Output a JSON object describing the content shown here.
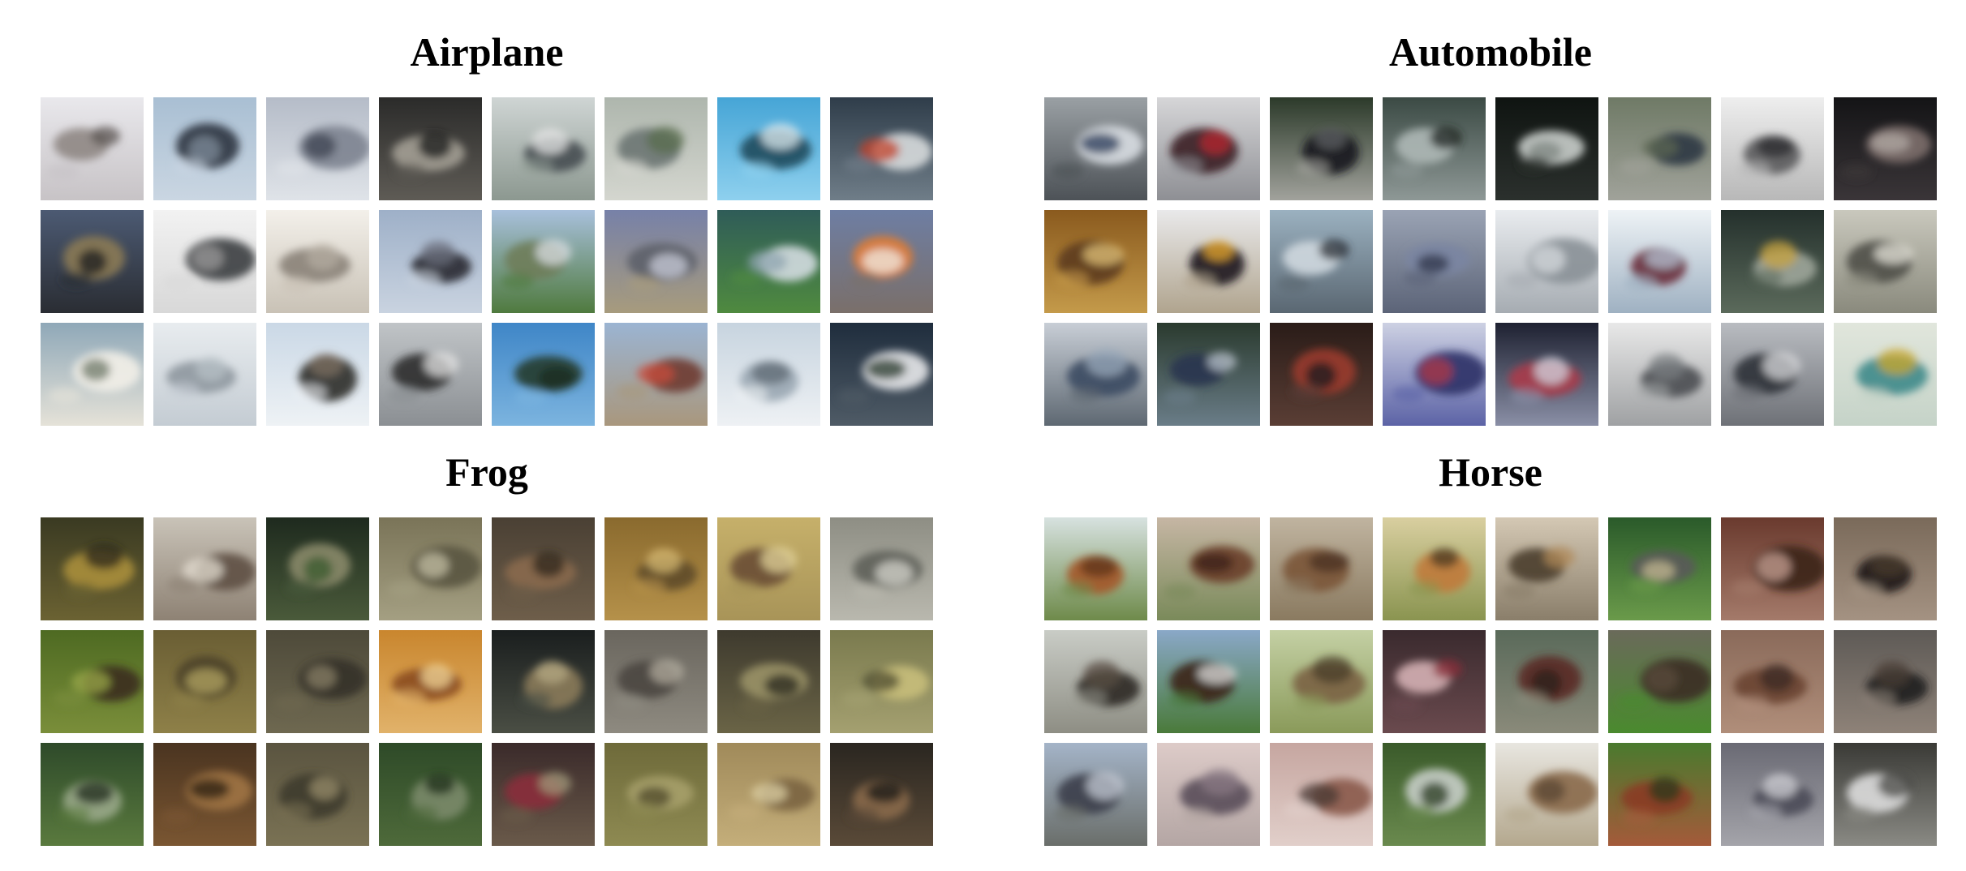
{
  "panels": [
    {
      "title": "Airplane",
      "tiles": [
        {
          "name": "airplane-sample",
          "bg": [
            "#e9e8ec",
            "#c7c3c6"
          ],
          "blob": "#8f8784",
          "accent": "#5b5452"
        },
        {
          "name": "airplane-sample",
          "bg": [
            "#a9bfd3",
            "#cad6e2"
          ],
          "blob": "#2f3540",
          "accent": "#7c8a98"
        },
        {
          "name": "airplane-sample",
          "bg": [
            "#b5bcc8",
            "#dfe3e8"
          ],
          "blob": "#7d8390",
          "accent": "#3f4450"
        },
        {
          "name": "airplane-sample",
          "bg": [
            "#2b2b2a",
            "#5e5b55"
          ],
          "blob": "#a39e94",
          "accent": "#191918"
        },
        {
          "name": "airplane-sample",
          "bg": [
            "#cfd5d4",
            "#8c9890"
          ],
          "blob": "#454d52",
          "accent": "#e6e6e6"
        },
        {
          "name": "airplane-sample",
          "bg": [
            "#aeb6ad",
            "#d4d6cf"
          ],
          "blob": "#6c7672",
          "accent": "#5a6d4d"
        },
        {
          "name": "airplane-sample",
          "bg": [
            "#46a5d6",
            "#8ed0ee"
          ],
          "blob": "#1e4a5c",
          "accent": "#dde8ec"
        },
        {
          "name": "airplane-sample",
          "bg": [
            "#2f3d4a",
            "#6f7d88"
          ],
          "blob": "#d7dadc",
          "accent": "#c2412a"
        },
        {
          "name": "airplane-sample",
          "bg": [
            "#4c5a73",
            "#2a2d33"
          ],
          "blob": "#8b7a55",
          "accent": "#1c1d20"
        },
        {
          "name": "airplane-sample",
          "bg": [
            "#f2f2f2",
            "#d8d8d8"
          ],
          "blob": "#3b3d40",
          "accent": "#9a9a9a"
        },
        {
          "name": "airplane-sample",
          "bg": [
            "#f3f0ea",
            "#c9c2b6"
          ],
          "blob": "#8a8278",
          "accent": "#b4aca0"
        },
        {
          "name": "airplane-sample",
          "bg": [
            "#9eb0c8",
            "#c9d3e0"
          ],
          "blob": "#2a2a30",
          "accent": "#6b6f7c"
        },
        {
          "name": "airplane-sample",
          "bg": [
            "#a8c0dc",
            "#4f7a3e"
          ],
          "blob": "#6f7d5a",
          "accent": "#d9dde3"
        },
        {
          "name": "airplane-sample",
          "bg": [
            "#7781a8",
            "#a79b7d"
          ],
          "blob": "#5d5f69",
          "accent": "#c8ccd8"
        },
        {
          "name": "airplane-sample",
          "bg": [
            "#2f5c58",
            "#4f8a3f"
          ],
          "blob": "#d3dbe0",
          "accent": "#8fa4b0"
        },
        {
          "name": "airplane-sample",
          "bg": [
            "#6e7ea3",
            "#7a6f6a"
          ],
          "blob": "#e07d35",
          "accent": "#f1ece6"
        },
        {
          "name": "airplane-sample",
          "bg": [
            "#8fa8b8",
            "#e5e2d8"
          ],
          "blob": "#f2efe8",
          "accent": "#6e7a68"
        },
        {
          "name": "airplane-sample",
          "bg": [
            "#e8ecef",
            "#c4ccd3"
          ],
          "blob": "#8e979e",
          "accent": "#b7c0c6"
        },
        {
          "name": "airplane-sample",
          "bg": [
            "#cad8e6",
            "#eef2f5"
          ],
          "blob": "#2f2c2a",
          "accent": "#7d6f62"
        },
        {
          "name": "airplane-sample",
          "bg": [
            "#c0c4c7",
            "#8b8f93"
          ],
          "blob": "#2c2c2e",
          "accent": "#e4e4e4"
        },
        {
          "name": "airplane-sample",
          "bg": [
            "#3f86c7",
            "#7cb4df"
          ],
          "blob": "#243a2e",
          "accent": "#1a2a22"
        },
        {
          "name": "airplane-sample",
          "bg": [
            "#9bb4d2",
            "#a9977d"
          ],
          "blob": "#6e3a30",
          "accent": "#c84c3c"
        },
        {
          "name": "airplane-sample",
          "bg": [
            "#c7d4df",
            "#eef1f4"
          ],
          "blob": "#9aa7b2",
          "accent": "#5d6873"
        },
        {
          "name": "airplane-sample",
          "bg": [
            "#1f2d3d",
            "#4f5b66"
          ],
          "blob": "#e7e8ea",
          "accent": "#2a3a2e"
        }
      ]
    },
    {
      "title": "Automobile",
      "tiles": [
        {
          "name": "automobile-sample",
          "bg": [
            "#9aa0a4",
            "#4d5257"
          ],
          "blob": "#d8dde2",
          "accent": "#2a3a5a"
        },
        {
          "name": "automobile-sample",
          "bg": [
            "#d6d6d8",
            "#8e8f94"
          ],
          "blob": "#3a1e26",
          "accent": "#b8262e"
        },
        {
          "name": "automobile-sample",
          "bg": [
            "#2c3a2a",
            "#a1a29c"
          ],
          "blob": "#1a1a1c",
          "accent": "#5d5f63"
        },
        {
          "name": "automobile-sample",
          "bg": [
            "#3b4a44",
            "#8e9896"
          ],
          "blob": "#aeb8b6",
          "accent": "#1f2624"
        },
        {
          "name": "automobile-sample",
          "bg": [
            "#0f1411",
            "#2b302d"
          ],
          "blob": "#c9cecb",
          "accent": "#7f8682"
        },
        {
          "name": "automobile-sample",
          "bg": [
            "#6f7a66",
            "#a0a29a"
          ],
          "blob": "#2f3642",
          "accent": "#5c6652"
        },
        {
          "name": "automobile-sample",
          "bg": [
            "#eeeeee",
            "#b8b8b8"
          ],
          "blob": "#5b5b5d",
          "accent": "#2b2b2d"
        },
        {
          "name": "automobile-sample",
          "bg": [
            "#141416",
            "#3a3538"
          ],
          "blob": "#7d6f6c",
          "accent": "#b2a9a4"
        },
        {
          "name": "automobile-sample",
          "bg": [
            "#8a5a1e",
            "#c49a4a"
          ],
          "blob": "#5d3a1c",
          "accent": "#e0c27a"
        },
        {
          "name": "automobile-sample",
          "bg": [
            "#e9e9ea",
            "#b0a48e"
          ],
          "blob": "#1c1b1e",
          "accent": "#e9a72a"
        },
        {
          "name": "automobile-sample",
          "bg": [
            "#9bb1c0",
            "#5a6772"
          ],
          "blob": "#cfd8df",
          "accent": "#2d3338"
        },
        {
          "name": "automobile-sample",
          "bg": [
            "#9aa3b4",
            "#5c6478"
          ],
          "blob": "#7a85a2",
          "accent": "#30354a"
        },
        {
          "name": "automobile-sample",
          "bg": [
            "#e9ecef",
            "#a6acb2"
          ],
          "blob": "#8a9197",
          "accent": "#d6dade"
        },
        {
          "name": "automobile-sample",
          "bg": [
            "#eef3f6",
            "#9fb1c2"
          ],
          "blob": "#6a2b3a",
          "accent": "#b3c3d2"
        },
        {
          "name": "automobile-sample",
          "bg": [
            "#24302c",
            "#5b6a5b"
          ],
          "blob": "#9da59a",
          "accent": "#c7a33e"
        },
        {
          "name": "automobile-sample",
          "bg": [
            "#c9c8bd",
            "#8a8a7d"
          ],
          "blob": "#4f4f48",
          "accent": "#e4e3da"
        },
        {
          "name": "automobile-sample",
          "bg": [
            "#c8ced6",
            "#5e6872"
          ],
          "blob": "#3b4a63",
          "accent": "#9aa9bb"
        },
        {
          "name": "automobile-sample",
          "bg": [
            "#2a3a2e",
            "#6a7d88"
          ],
          "blob": "#283550",
          "accent": "#b6bfc8"
        },
        {
          "name": "automobile-sample",
          "bg": [
            "#2a1c18",
            "#5a3e35"
          ],
          "blob": "#9a3a2c",
          "accent": "#1a1c20"
        },
        {
          "name": "automobile-sample",
          "bg": [
            "#cdd1e3",
            "#5c63a6"
          ],
          "blob": "#2f3266",
          "accent": "#b03848"
        },
        {
          "name": "automobile-sample",
          "bg": [
            "#1e2131",
            "#8a8fa6"
          ],
          "blob": "#a93a4a",
          "accent": "#d3d6e0"
        },
        {
          "name": "automobile-sample",
          "bg": [
            "#e8e8e8",
            "#9fa1a3"
          ],
          "blob": "#4b4e52",
          "accent": "#7a7d81"
        },
        {
          "name": "automobile-sample",
          "bg": [
            "#b9bcc1",
            "#6e7177"
          ],
          "blob": "#2c3038",
          "accent": "#d8dadc"
        },
        {
          "name": "automobile-sample",
          "bg": [
            "#e1e6dc",
            "#c5d3c8"
          ],
          "blob": "#3f8a8a",
          "accent": "#c9a72c"
        }
      ]
    },
    {
      "title": "Frog",
      "tiles": [
        {
          "name": "frog-sample",
          "bg": [
            "#3a3a22",
            "#6b6232"
          ],
          "blob": "#a88e3a",
          "accent": "#2a2718"
        },
        {
          "name": "frog-sample",
          "bg": [
            "#c9c3b8",
            "#8e8274"
          ],
          "blob": "#5e4f42",
          "accent": "#e4ddd2"
        },
        {
          "name": "frog-sample",
          "bg": [
            "#1e2a1e",
            "#4a5a3a"
          ],
          "blob": "#8a8a6a",
          "accent": "#3a5a2e"
        },
        {
          "name": "frog-sample",
          "bg": [
            "#7a7458",
            "#a49f82"
          ],
          "blob": "#5a5440",
          "accent": "#c4bfa4"
        },
        {
          "name": "frog-sample",
          "bg": [
            "#4a4034",
            "#6e5e4a"
          ],
          "blob": "#8a6a4c",
          "accent": "#2e261e"
        },
        {
          "name": "frog-sample",
          "bg": [
            "#8a6a2e",
            "#b5914a"
          ],
          "blob": "#5e4a2a",
          "accent": "#d6b872"
        },
        {
          "name": "frog-sample",
          "bg": [
            "#c6b06a",
            "#a89458"
          ],
          "blob": "#6a4e34",
          "accent": "#e1d39a"
        },
        {
          "name": "frog-sample",
          "bg": [
            "#8e8e84",
            "#b9b8ae"
          ],
          "blob": "#5e605a",
          "accent": "#d5d4cc"
        },
        {
          "name": "frog-sample",
          "bg": [
            "#4e6a22",
            "#7a8e3a"
          ],
          "blob": "#3a2e1e",
          "accent": "#9aa84a"
        },
        {
          "name": "frog-sample",
          "bg": [
            "#6a5e34",
            "#8e8048"
          ],
          "blob": "#4a4028",
          "accent": "#b2a462"
        },
        {
          "name": "frog-sample",
          "bg": [
            "#4e4a3a",
            "#6e6850"
          ],
          "blob": "#34302a",
          "accent": "#8a8266"
        },
        {
          "name": "frog-sample",
          "bg": [
            "#c9862e",
            "#e1b26a"
          ],
          "blob": "#8a4a1e",
          "accent": "#f2d69a"
        },
        {
          "name": "frog-sample",
          "bg": [
            "#1a1e1e",
            "#4a4e44"
          ],
          "blob": "#8a7a5a",
          "accent": "#b4a882"
        },
        {
          "name": "frog-sample",
          "bg": [
            "#6a665e",
            "#8e8a80"
          ],
          "blob": "#4a4640",
          "accent": "#b0ab9e"
        },
        {
          "name": "frog-sample",
          "bg": [
            "#3e3a2e",
            "#6a6446"
          ],
          "blob": "#9a9266",
          "accent": "#2a2820"
        },
        {
          "name": "frog-sample",
          "bg": [
            "#7a7a4e",
            "#a4a070"
          ],
          "blob": "#c8be7a",
          "accent": "#4e4c32"
        },
        {
          "name": "frog-sample",
          "bg": [
            "#2e4a2a",
            "#5a7a3e"
          ],
          "blob": "#9aa88a",
          "accent": "#1e2a1c"
        },
        {
          "name": "frog-sample",
          "bg": [
            "#4a3420",
            "#7a5632"
          ],
          "blob": "#a07444",
          "accent": "#2a1e14"
        },
        {
          "name": "frog-sample",
          "bg": [
            "#5a5440",
            "#7a7254"
          ],
          "blob": "#3e3a2c",
          "accent": "#968c6a"
        },
        {
          "name": "frog-sample",
          "bg": [
            "#2e4a28",
            "#4e6a3a"
          ],
          "blob": "#7a8a6a",
          "accent": "#1e2e1a"
        },
        {
          "name": "frog-sample",
          "bg": [
            "#3a2a2a",
            "#6a5a4a"
          ],
          "blob": "#8a2e3a",
          "accent": "#a0987a"
        },
        {
          "name": "frog-sample",
          "bg": [
            "#6e6a3a",
            "#8e8a52"
          ],
          "blob": "#a6a06a",
          "accent": "#4e4a2a"
        },
        {
          "name": "frog-sample",
          "bg": [
            "#a08a5a",
            "#c4ae7a"
          ],
          "blob": "#7a6440",
          "accent": "#ded0a4"
        },
        {
          "name": "frog-sample",
          "bg": [
            "#2a2620",
            "#5a4a38"
          ],
          "blob": "#8a6a4a",
          "accent": "#1a1814"
        }
      ]
    },
    {
      "title": "Horse",
      "tiles": [
        {
          "name": "horse-sample",
          "bg": [
            "#d7e2e0",
            "#6e8a4a"
          ],
          "blob": "#a4582a",
          "accent": "#5e3218"
        },
        {
          "name": "horse-sample",
          "bg": [
            "#c6b6a4",
            "#7a8a5a"
          ],
          "blob": "#6a3e2a",
          "accent": "#3a2218"
        },
        {
          "name": "horse-sample",
          "bg": [
            "#c0b4a0",
            "#8a7a60"
          ],
          "blob": "#7a5436",
          "accent": "#4a3222"
        },
        {
          "name": "horse-sample",
          "bg": [
            "#d9cfa0",
            "#8a9450"
          ],
          "blob": "#c07a3a",
          "accent": "#4a3a22"
        },
        {
          "name": "horse-sample",
          "bg": [
            "#d4c8b4",
            "#8a7e6a"
          ],
          "blob": "#4a3e2e",
          "accent": "#b08a5a"
        },
        {
          "name": "horse-sample",
          "bg": [
            "#2a5a2a",
            "#6a9a4a"
          ],
          "blob": "#5a5a5a",
          "accent": "#c4b890"
        },
        {
          "name": "horse-sample",
          "bg": [
            "#6a3a2e",
            "#a47a6a"
          ],
          "blob": "#3a221a",
          "accent": "#c8a294"
        },
        {
          "name": "horse-sample",
          "bg": [
            "#7a6a5a",
            "#a49282"
          ],
          "blob": "#1e1a18",
          "accent": "#4a3a2e"
        },
        {
          "name": "horse-sample",
          "bg": [
            "#c9ccc6",
            "#8e8e84"
          ],
          "blob": "#2e2a26",
          "accent": "#5a4e44"
        },
        {
          "name": "horse-sample",
          "bg": [
            "#8aa8c8",
            "#4a7a3a"
          ],
          "blob": "#3a2418",
          "accent": "#dcdcdc"
        },
        {
          "name": "horse-sample",
          "bg": [
            "#c4d0a4",
            "#8a9a5a"
          ],
          "blob": "#7a6242",
          "accent": "#4a3e2a"
        },
        {
          "name": "horse-sample",
          "bg": [
            "#3a2a2e",
            "#6a4a4e"
          ],
          "blob": "#d4b0b4",
          "accent": "#8a2e3a"
        },
        {
          "name": "horse-sample",
          "bg": [
            "#5a6a5a",
            "#8a8a7a"
          ],
          "blob": "#5a2a22",
          "accent": "#2a1e1a"
        },
        {
          "name": "horse-sample",
          "bg": [
            "#6a6a5a",
            "#4a8a2e"
          ],
          "blob": "#3a2e24",
          "accent": "#5a4a3a"
        },
        {
          "name": "horse-sample",
          "bg": [
            "#8a6a5a",
            "#b08e7a"
          ],
          "blob": "#6a4232",
          "accent": "#3a2a22"
        },
        {
          "name": "horse-sample",
          "bg": [
            "#5e5a56",
            "#8e8278"
          ],
          "blob": "#1e1c1c",
          "accent": "#4a3e36"
        },
        {
          "name": "horse-sample",
          "bg": [
            "#a4b4c8",
            "#6a6e6a"
          ],
          "blob": "#3a3e4a",
          "accent": "#c4cad4"
        },
        {
          "name": "horse-sample",
          "bg": [
            "#ddcbc8",
            "#b4a6a4"
          ],
          "blob": "#5a4e5a",
          "accent": "#8a7a84"
        },
        {
          "name": "horse-sample",
          "bg": [
            "#c6a6a0",
            "#e1cfca"
          ],
          "blob": "#8a5a4a",
          "accent": "#4a3a34"
        },
        {
          "name": "horse-sample",
          "bg": [
            "#3a5a2a",
            "#6a8a4e"
          ],
          "blob": "#c6cec8",
          "accent": "#2a3a22"
        },
        {
          "name": "horse-sample",
          "bg": [
            "#e8e6e0",
            "#b4a88e"
          ],
          "blob": "#8a6a4a",
          "accent": "#5a4632"
        },
        {
          "name": "horse-sample",
          "bg": [
            "#4a7a2e",
            "#a45a3a"
          ],
          "blob": "#8a3a22",
          "accent": "#2a3a1a"
        },
        {
          "name": "horse-sample",
          "bg": [
            "#6a6a74",
            "#a4a4aa"
          ],
          "blob": "#4a4a58",
          "accent": "#d0d0d6"
        },
        {
          "name": "horse-sample",
          "bg": [
            "#3a3a36",
            "#8a8a84"
          ],
          "blob": "#dcdcdc",
          "accent": "#4a4a46"
        }
      ]
    }
  ]
}
